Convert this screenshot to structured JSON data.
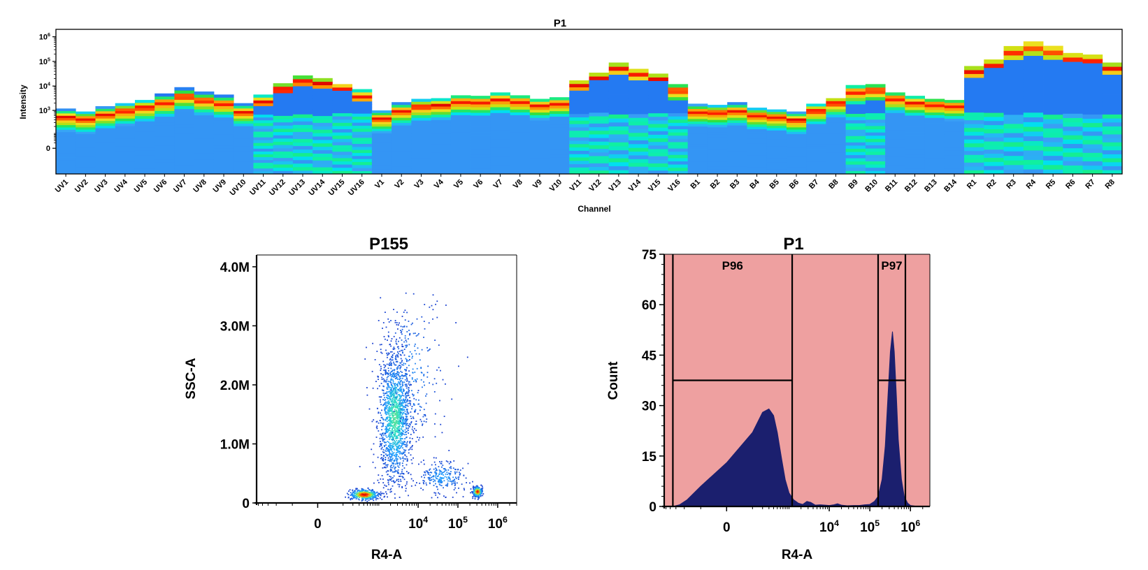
{
  "chart_data": [
    {
      "type": "heatmap",
      "title": "P1",
      "xlabel": "Channel",
      "ylabel": "Intensity",
      "yscale": "biexponential",
      "yticks": [
        "0",
        "10",
        "10",
        "10",
        "10"
      ],
      "ytick_exponents": [
        "",
        "3",
        "4",
        "5",
        "6"
      ],
      "ytick_values": [
        0,
        1000,
        10000,
        100000,
        1000000
      ],
      "ylim": [
        -300,
        2000000
      ],
      "colormap": [
        "#1a2db8",
        "#1a6af0",
        "#3aa0f5",
        "#00e0f0",
        "#10f0a0",
        "#30e040",
        "#c8e010",
        "#f0e020",
        "#ff8a00",
        "#ff2000",
        "#d80000"
      ],
      "categories": [
        "UV1",
        "UV2",
        "UV3",
        "UV4",
        "UV5",
        "UV6",
        "UV7",
        "UV8",
        "UV9",
        "UV10",
        "UV11",
        "UV12",
        "UV13",
        "UV14",
        "UV15",
        "UV16",
        "V1",
        "V2",
        "V3",
        "V4",
        "V5",
        "V6",
        "V7",
        "V8",
        "V9",
        "V10",
        "V11",
        "V12",
        "V13",
        "V14",
        "V15",
        "V16",
        "B1",
        "B2",
        "B3",
        "B4",
        "B5",
        "B6",
        "B7",
        "B8",
        "B9",
        "B10",
        "B11",
        "B12",
        "B13",
        "B14",
        "R1",
        "R2",
        "R3",
        "R4",
        "R5",
        "R6",
        "R7",
        "R8"
      ],
      "peak_intensity": [
        550,
        450,
        700,
        1000,
        1400,
        2200,
        4000,
        2700,
        2000,
        900,
        2400,
        8000,
        16000,
        13000,
        8500,
        4000,
        480,
        1000,
        1500,
        1700,
        2400,
        2300,
        3000,
        2400,
        1700,
        2000,
        11000,
        22000,
        55000,
        33000,
        20000,
        7000,
        900,
        850,
        1000,
        650,
        550,
        420,
        1000,
        2100,
        6000,
        7000,
        3200,
        2200,
        1800,
        1600,
        40000,
        75000,
        260000,
        420000,
        280000,
        140000,
        120000,
        55000
      ],
      "max_intensity": [
        1200,
        900,
        1500,
        2000,
        2700,
        5000,
        9000,
        6000,
        4500,
        2000,
        4500,
        13000,
        27000,
        21000,
        12000,
        7500,
        1000,
        2200,
        3000,
        3200,
        4200,
        4000,
        5500,
        4200,
        3000,
        3500,
        17000,
        35000,
        90000,
        50000,
        32000,
        12000,
        1900,
        1700,
        2200,
        1300,
        1100,
        900,
        1900,
        3200,
        11000,
        12000,
        5500,
        4000,
        3000,
        2700,
        65000,
        120000,
        420000,
        650000,
        430000,
        220000,
        190000,
        90000
      ],
      "bright_population_top": [
        0,
        0,
        0,
        0,
        0,
        0,
        0,
        0,
        0,
        0,
        1500,
        7000,
        11000,
        9000,
        6000,
        2500,
        0,
        0,
        0,
        0,
        0,
        0,
        0,
        0,
        0,
        0,
        6000,
        16000,
        25000,
        20000,
        15000,
        2500,
        0,
        0,
        0,
        0,
        0,
        0,
        0,
        0,
        2000,
        3000,
        0,
        0,
        0,
        0,
        25000,
        50000,
        120000,
        200000,
        130000,
        90000,
        80000,
        35000
      ]
    },
    {
      "type": "scatter",
      "title": "P155",
      "xlabel": "R4-A",
      "ylabel": "SSC-A",
      "xscale": "biexponential",
      "xticks": [
        "0",
        "10",
        "10",
        "10"
      ],
      "xtick_exponents": [
        "",
        "4",
        "5",
        "6"
      ],
      "xtick_values": [
        0,
        10000,
        100000,
        1000000
      ],
      "xlim": [
        -1000,
        3000000
      ],
      "yticks": [
        "0",
        "1.0M",
        "2.0M",
        "3.0M",
        "4.0M"
      ],
      "ytick_values": [
        0,
        1000000,
        2000000,
        3000000,
        4000000
      ],
      "ylim": [
        0,
        4200000
      ],
      "colormap": [
        "#1a3fd0",
        "#20a0ff",
        "#30e0c0",
        "#d0e020",
        "#ff6000",
        "#e00000"
      ],
      "populations": [
        {
          "x_center": 400,
          "y_center": 150000,
          "x_spread": 0.18,
          "y_spread": 45000,
          "count": 420,
          "density_peak": 1.0
        },
        {
          "x_center": 2500,
          "y_center": 1450000,
          "x_spread": 0.2,
          "y_spread": 550000,
          "count": 1500,
          "density_peak": 0.45
        },
        {
          "x_center": 300000,
          "y_center": 200000,
          "x_spread": 0.06,
          "y_spread": 45000,
          "count": 260,
          "density_peak": 0.95
        },
        {
          "x_center": 40000,
          "y_center": 450000,
          "x_spread": 0.32,
          "y_spread": 140000,
          "count": 230,
          "density_peak": 0.2
        },
        {
          "x_center": 6000,
          "y_center": 2200000,
          "x_spread": 0.45,
          "y_spread": 700000,
          "count": 300,
          "density_peak": 0.15
        }
      ]
    },
    {
      "type": "area",
      "title": "P1",
      "xlabel": "R4-A",
      "ylabel": "Count",
      "xscale": "biexponential",
      "xticks": [
        "0",
        "10",
        "10",
        "10"
      ],
      "xtick_exponents": [
        "",
        "4",
        "5",
        "6"
      ],
      "xtick_values": [
        0,
        10000,
        100000,
        1000000
      ],
      "xlim": [
        -1000,
        3000000
      ],
      "yticks": [
        "0",
        "15",
        "30",
        "45",
        "60",
        "75"
      ],
      "ytick_values": [
        0,
        15,
        30,
        45,
        60,
        75
      ],
      "ylim": [
        0,
        75
      ],
      "fill_color": "#1b1f6e",
      "background_color": "#eea0a0",
      "x": [
        -800,
        -600,
        -400,
        -250,
        -100,
        0,
        100,
        200,
        300,
        400,
        500,
        650,
        800,
        1000,
        1300,
        1700,
        2200,
        2800,
        3500,
        4500,
        6000,
        8000,
        10000,
        13000,
        16000,
        20000,
        28000,
        40000,
        55000,
        75000,
        100000,
        130000,
        160000,
        200000,
        240000,
        280000,
        320000,
        360000,
        400000,
        450000,
        500000,
        600000,
        700000,
        850000,
        1000000,
        1500000,
        3000000
      ],
      "y": [
        0,
        0,
        0.5,
        2,
        6,
        13,
        22,
        28,
        29,
        27,
        22,
        14,
        8,
        4,
        2,
        1,
        0.6,
        1.5,
        1.2,
        0.4,
        0.5,
        0.4,
        0.3,
        0.5,
        0.8,
        0.4,
        0.2,
        0.3,
        0.3,
        0.5,
        0.6,
        1.5,
        3,
        8,
        18,
        33,
        46,
        52,
        46,
        33,
        20,
        8,
        3,
        1,
        0.3,
        0,
        0
      ],
      "gates": [
        {
          "name": "P96",
          "x_min": -600,
          "x_max": 1200,
          "bar_y": 37.5
        },
        {
          "name": "P97",
          "x_min": 160000,
          "x_max": 750000,
          "bar_y": 37.5
        }
      ]
    }
  ]
}
